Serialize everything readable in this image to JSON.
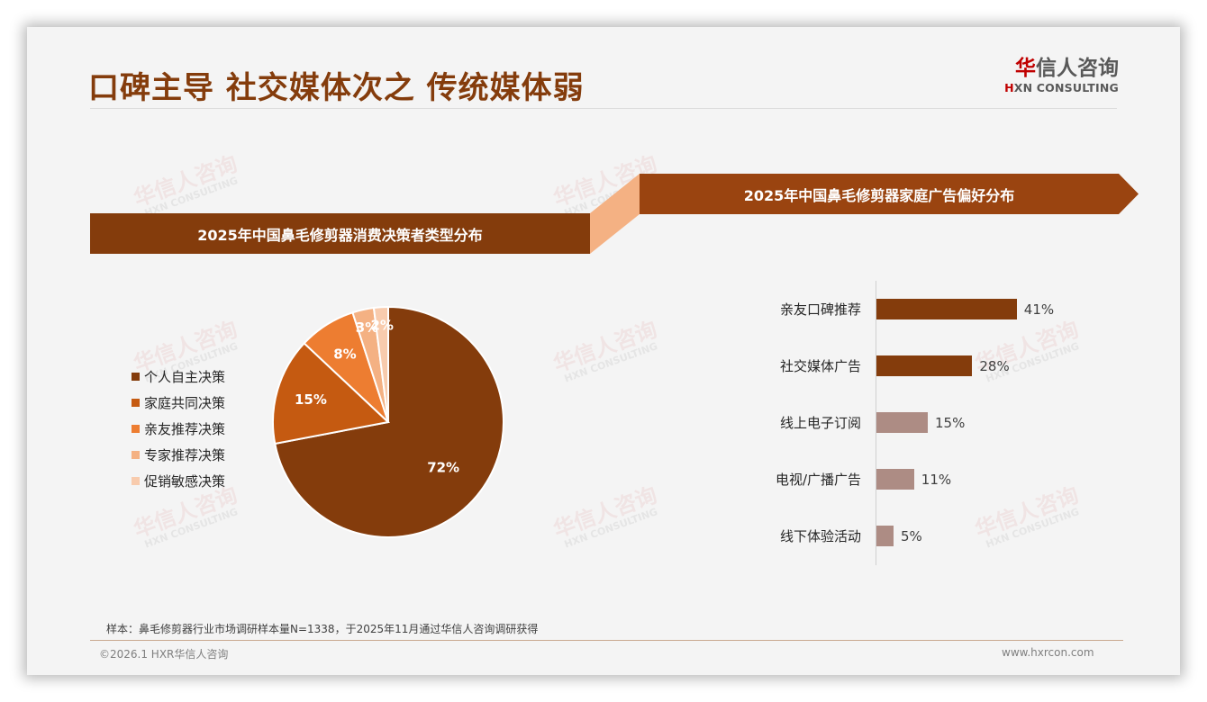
{
  "header": {
    "title": "口碑主导 社交媒体次之 传统媒体弱",
    "logo": {
      "cn_first": "华",
      "cn_rest": "信人咨询",
      "en_first": "H",
      "en_rest": "XN CONSULTING"
    }
  },
  "watermark": {
    "cn": "华信人咨询",
    "en": "HXN CONSULTING"
  },
  "colors": {
    "primary": "#843c0c",
    "banner_right": "#9a4410",
    "connector": "#f4b183",
    "bar_highlight": "#843c0c",
    "bar_muted": "#ad8c84",
    "title": "#843c0c"
  },
  "left_panel": {
    "banner_title": "2025年中国鼻毛修剪器消费决策者类型分布"
  },
  "right_panel": {
    "banner_title": "2025年中国鼻毛修剪器家庭广告偏好分布"
  },
  "chart_data": [
    {
      "type": "pie",
      "title": "2025年中国鼻毛修剪器消费决策者类型分布",
      "categories": [
        "个人自主决策",
        "家庭共同决策",
        "亲友推荐决策",
        "专家推荐决策",
        "促销敏感决策"
      ],
      "values": [
        72,
        15,
        8,
        3,
        2
      ],
      "labels": [
        "72%",
        "15%",
        "8%",
        "3%",
        "2%"
      ],
      "colors": [
        "#843c0c",
        "#c55a11",
        "#ed7d31",
        "#f4b183",
        "#f8cbad"
      ],
      "legend_position": "left",
      "start_angle": "12 o'clock, clockwise"
    },
    {
      "type": "bar",
      "orientation": "horizontal",
      "title": "2025年中国鼻毛修剪器家庭广告偏好分布",
      "categories": [
        "亲友口碑推荐",
        "社交媒体广告",
        "线上电子订阅",
        "电视/广播广告",
        "线下体验活动"
      ],
      "values": [
        41,
        28,
        15,
        11,
        5
      ],
      "labels": [
        "41%",
        "28%",
        "15%",
        "11%",
        "5%"
      ],
      "colors": [
        "#843c0c",
        "#843c0c",
        "#ad8c84",
        "#ad8c84",
        "#ad8c84"
      ],
      "xlabel": "",
      "ylabel": "",
      "grid": false
    }
  ],
  "footer": {
    "note": "样本：鼻毛修剪器行业市场调研样本量N=1338，于2025年11月通过华信人咨询调研获得",
    "copyright": "©2026.1 HXR华信人咨询",
    "website": "www.hxrcon.com"
  }
}
